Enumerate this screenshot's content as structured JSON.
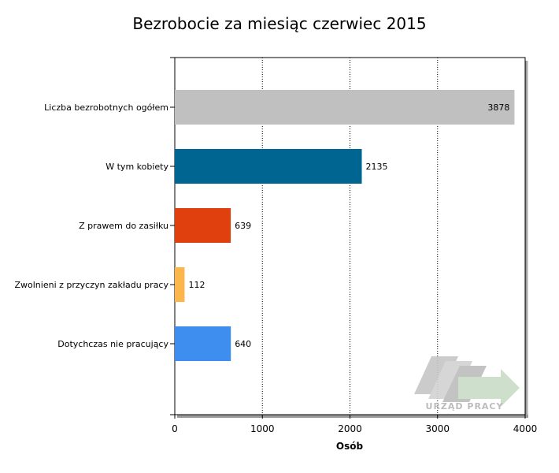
{
  "chart_data": {
    "type": "bar",
    "orientation": "horizontal",
    "title": "Bezrobocie za miesiąc czerwiec 2015",
    "xlabel": "Osób",
    "ylabel": "",
    "categories": [
      "Liczba bezrobotnych ogółem",
      "W tym kobiety",
      "Z prawem do zasiłku",
      "Zwolnieni z przyczyn zakładu pracy",
      "Dotychczas nie pracujący"
    ],
    "values": [
      3878,
      2135,
      639,
      112,
      640
    ],
    "value_labels": [
      "3878",
      "2135",
      "639",
      "112",
      "640"
    ],
    "colors": [
      "#c0c0c0",
      "#006691",
      "#e0400d",
      "#fdb64b",
      "#3e8ef0"
    ],
    "xlim": [
      0,
      4000
    ],
    "xticks": [
      0,
      1000,
      2000,
      3000,
      4000
    ],
    "xtick_labels": [
      "0",
      "1000",
      "2000",
      "3000",
      "4000"
    ],
    "grid": "vertical-dotted"
  },
  "watermark": {
    "text": "URZĄD PRACY"
  }
}
